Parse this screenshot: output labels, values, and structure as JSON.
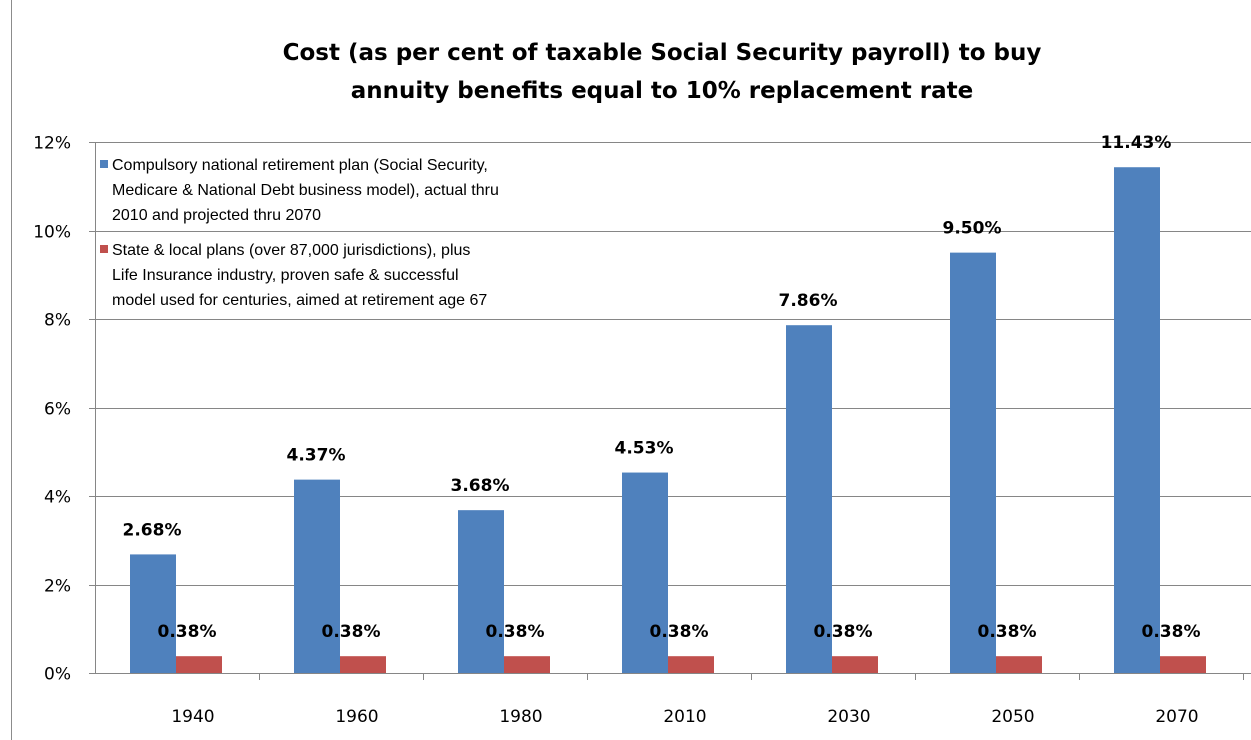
{
  "chart_data": {
    "type": "bar",
    "title": "Cost (as per cent of taxable Social Security payroll) to buy\nannuity benefits equal to 10% replacement rate",
    "categories": [
      "1940",
      "1960",
      "1980",
      "2010",
      "2030",
      "2050",
      "2070"
    ],
    "series": [
      {
        "name": "Compulsory national retirement plan (Social Security, Medicare & National Debt business model), actual thru 2010 and projected thru 2070",
        "name_lines": [
          "Compulsory national retirement plan (Social Security,",
          "Medicare & National Debt business model), actual thru",
          "2010 and projected thru 2070"
        ],
        "values": [
          2.68,
          4.37,
          3.68,
          4.53,
          7.86,
          9.5,
          11.43
        ],
        "labels": [
          "2.68%",
          "4.37%",
          "3.68%",
          "4.53%",
          "7.86%",
          "9.50%",
          "11.43%"
        ],
        "color": "#4f81bd"
      },
      {
        "name": "State & local plans (over 87,000 jurisdictions), plus Life Insurance industry, proven safe & successful model used for centuries, aimed at retirement age 67",
        "name_lines": [
          "State & local plans (over 87,000 jurisdictions), plus",
          "Life Insurance industry, proven safe & successful",
          "model used for centuries, aimed at retirement age 67"
        ],
        "values": [
          0.38,
          0.38,
          0.38,
          0.38,
          0.38,
          0.38,
          0.38
        ],
        "labels": [
          "0.38%",
          "0.38%",
          "0.38%",
          "0.38%",
          "0.38%",
          "0.38%",
          "0.38%"
        ],
        "color": "#c0504d"
      }
    ],
    "ylim": [
      0,
      12
    ],
    "yticks": [
      0,
      2,
      4,
      6,
      8,
      10,
      12
    ],
    "ytick_labels": [
      "0%",
      "2%",
      "4%",
      "6%",
      "8%",
      "10%",
      "12%"
    ],
    "grid": true,
    "legend_position": "top-left inside plot",
    "xlabel": "",
    "ylabel": ""
  }
}
